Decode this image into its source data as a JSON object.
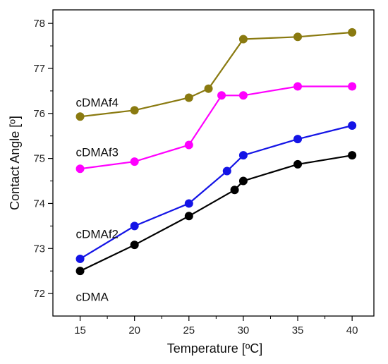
{
  "chart_data": {
    "type": "line",
    "title": "",
    "xlabel": "Temperature [ºC]",
    "ylabel": "Contact Angle [º]",
    "xlim": [
      12.5,
      42
    ],
    "ylim": [
      71.5,
      78.3
    ],
    "x_ticks": [
      15,
      20,
      25,
      30,
      35,
      40
    ],
    "y_ticks": [
      72,
      73,
      74,
      75,
      76,
      77,
      78
    ],
    "grid": false,
    "legend": "inline labels",
    "series": [
      {
        "name": "cDMAf4",
        "color": "#8a7a10",
        "x": [
          15,
          20,
          25,
          26.8,
          30,
          35,
          40
        ],
        "y": [
          75.93,
          76.07,
          76.35,
          76.55,
          77.65,
          77.7,
          77.8
        ]
      },
      {
        "name": "cDMAf3",
        "color": "#ff00ff",
        "x": [
          15,
          20,
          25,
          28,
          30,
          35,
          40
        ],
        "y": [
          74.77,
          74.93,
          75.3,
          76.4,
          76.4,
          76.6,
          76.6
        ]
      },
      {
        "name": "cDMAf2",
        "color": "#1414e6",
        "x": [
          15,
          20,
          25,
          28.5,
          30,
          35,
          40
        ],
        "y": [
          72.77,
          73.5,
          74.0,
          74.72,
          75.07,
          75.43,
          75.73
        ]
      },
      {
        "name": "cDMA",
        "color": "#000000",
        "x": [
          15,
          20,
          25,
          29.2,
          30,
          35,
          40
        ],
        "y": [
          72.5,
          73.08,
          73.72,
          74.3,
          74.5,
          74.87,
          75.07
        ]
      }
    ]
  }
}
